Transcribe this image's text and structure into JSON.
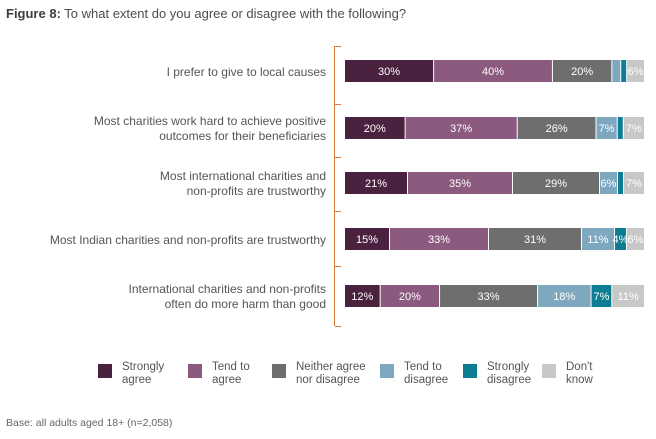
{
  "figure": {
    "title_prefix": "Figure 8:",
    "title_text": " To what extent do you agree or disagree with the following?",
    "base_note": "Base: all adults aged 18+ (n=2,058)"
  },
  "colors": {
    "strongly_agree": "#4a2240",
    "tend_to_agree": "#8c5a7e",
    "neither": "#6e6e6e",
    "tend_to_disagree": "#7ea8c0",
    "strongly_disagree": "#0d7d93",
    "dont_know": "#c8c8c8",
    "bracket": "#e07a3a"
  },
  "legend": [
    {
      "line1": "Strongly",
      "line2": "agree"
    },
    {
      "line1": "Tend to",
      "line2": "agree"
    },
    {
      "line1": "Neither agree",
      "line2": "nor disagree"
    },
    {
      "line1": "Tend to",
      "line2": "disagree"
    },
    {
      "line1": "Strongly",
      "line2": "disagree"
    },
    {
      "line1": "Don't",
      "line2": "know"
    }
  ],
  "chart_data": {
    "type": "bar",
    "orientation": "horizontal",
    "stacked": true,
    "categories": [
      [
        "I prefer to give to local causes"
      ],
      [
        "Most charities work hard to achieve positive",
        "outcomes for their beneficiaries"
      ],
      [
        "Most international charities and",
        "non-profits are trustworthy"
      ],
      [
        "Most Indian charities and non-profits are trustworthy"
      ],
      [
        "International charities and non-profits",
        "often do more harm than good"
      ]
    ],
    "series": [
      {
        "name": "Strongly agree",
        "values": [
          30,
          20,
          21,
          15,
          12
        ],
        "labels": [
          "30%",
          "20%",
          "21%",
          "15%",
          "12%"
        ]
      },
      {
        "name": "Tend to agree",
        "values": [
          40,
          37,
          35,
          33,
          20
        ],
        "labels": [
          "40%",
          "37%",
          "35%",
          "33%",
          "20%"
        ]
      },
      {
        "name": "Neither agree nor disagree",
        "values": [
          20,
          26,
          29,
          31,
          33
        ],
        "labels": [
          "20%",
          "26%",
          "29%",
          "31%",
          "33%"
        ]
      },
      {
        "name": "Tend to disagree",
        "values": [
          3,
          7,
          6,
          11,
          18
        ],
        "labels": [
          "",
          "7%",
          "6%",
          "11%",
          "18%"
        ]
      },
      {
        "name": "Strongly disagree",
        "values": [
          2,
          2,
          2,
          4,
          7
        ],
        "labels": [
          "",
          "",
          "",
          "4%",
          "7%"
        ]
      },
      {
        "name": "Don't know",
        "values": [
          6,
          7,
          7,
          6,
          11
        ],
        "labels": [
          "6%",
          "7%",
          "7%",
          "6%",
          "11%"
        ]
      }
    ],
    "xlim": [
      0,
      100
    ]
  }
}
